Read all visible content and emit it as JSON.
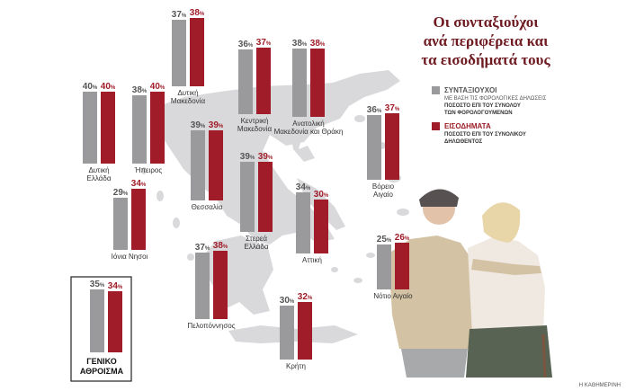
{
  "title": {
    "lines": [
      "Οι συνταξιούχοι",
      "ανά περιφέρεια και",
      "τα εισοδήματά τους"
    ]
  },
  "legend": {
    "pensioners": {
      "name": "ΣΥΝΤΑΞΙΟΥΧΟΙ",
      "note": "ΜΕ ΒΑΣΗ ΤΙΣ ΦΟΡΟΛΟΓΙΚΕΣ ΔΗΛΩΣΕΙΣ",
      "desc_1": "ΠΟΣΟΣΤΟ ΕΠΙ ΤΟΥ ΣΥΝΟΛΟΥ",
      "desc_2": "ΤΩΝ ΦΟΡΟΛΟΓΟΥΜΕΝΩΝ"
    },
    "income": {
      "name": "ΕΙΣΟΔΗΜΑΤΑ",
      "desc_1": "ΠΟΣΟΣΤΟ ΕΠΙ ΤΟΥ ΣΥΝΟΛΙΚΟΥ",
      "desc_2": "ΔΗΛΩΘΕΝΤΟΣ"
    }
  },
  "total": {
    "label_1": "ΓΕΝΙΚΟ",
    "label_2": "ΑΘΡΟΙΣΜΑ"
  },
  "source": "Η ΚΑΘΗΜΕΡΙΝΗ",
  "colors": {
    "pensioners": "#9a9a9c",
    "income": "#a01c28",
    "title": "#6e1b22",
    "map": "#d9d9dc"
  },
  "chart_data": {
    "type": "bar",
    "unit": "%",
    "series": [
      {
        "name": "ΣΥΝΤΑΞΙΟΥΧΟΙ",
        "key": "pensioners"
      },
      {
        "name": "ΕΙΣΟΔΗΜΑΤΑ",
        "key": "income"
      }
    ],
    "regions": [
      {
        "name_1": "Δυτική",
        "name_2": "Μακεδονία",
        "pensioners": 37,
        "income": 38
      },
      {
        "name_1": "Δυτική",
        "name_2": "Ελλάδα",
        "pensioners": 40,
        "income": 40
      },
      {
        "name_1": "Ήπειρος",
        "name_2": "",
        "pensioners": 38,
        "income": 40
      },
      {
        "name_1": "Κεντρική",
        "name_2": "Μακεδονία",
        "pensioners": 36,
        "income": 37
      },
      {
        "name_1": "Ανατολική",
        "name_2": "Μακεδονία και Θράκη",
        "pensioners": 38,
        "income": 38
      },
      {
        "name_1": "Θεσσαλία",
        "name_2": "",
        "pensioners": 39,
        "income": 39
      },
      {
        "name_1": "Στερεά",
        "name_2": "Ελλάδα",
        "pensioners": 39,
        "income": 39
      },
      {
        "name_1": "Βόρειο",
        "name_2": "Αιγαίο",
        "pensioners": 36,
        "income": 37
      },
      {
        "name_1": "Ιόνια Νησοι",
        "name_2": "",
        "pensioners": 29,
        "income": 34
      },
      {
        "name_1": "Αττική",
        "name_2": "",
        "pensioners": 34,
        "income": 30
      },
      {
        "name_1": "Πελοπόννησος",
        "name_2": "",
        "pensioners": 37,
        "income": 38
      },
      {
        "name_1": "Νότιο Αιγαίο",
        "name_2": "",
        "pensioners": 25,
        "income": 26
      },
      {
        "name_1": "Κρήτη",
        "name_2": "",
        "pensioners": 30,
        "income": 32
      }
    ],
    "total": {
      "pensioners": 35,
      "income": 34
    }
  }
}
